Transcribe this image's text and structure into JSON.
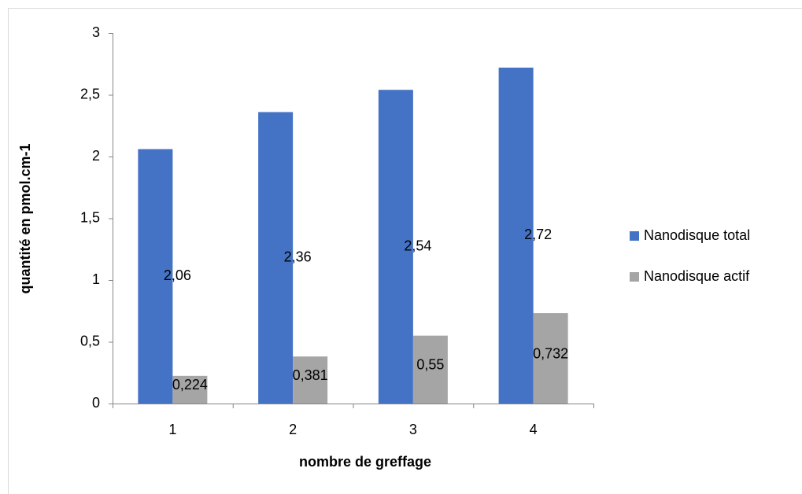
{
  "chart_data": {
    "type": "bar",
    "x_label": "nombre de greffage",
    "y_label": "quantité en pmol.cm-1",
    "categories": [
      "1",
      "2",
      "3",
      "4"
    ],
    "series": [
      {
        "name": "Nanodisque total",
        "color": "#4472c4",
        "values": [
          2.06,
          2.36,
          2.54,
          2.72
        ],
        "value_labels": [
          "2,06",
          "2,36",
          "2,54",
          "2,72"
        ]
      },
      {
        "name": "Nanodisque actif",
        "color": "#a5a5a5",
        "values": [
          0.224,
          0.381,
          0.55,
          0.732
        ],
        "value_labels": [
          "0,224",
          "0,381",
          "0,55",
          "0,732"
        ]
      }
    ],
    "ylim": [
      0,
      3
    ],
    "yticks": [
      0,
      {
        "value": 0.5,
        "label": "0,5"
      },
      1,
      {
        "value": 1.5,
        "label": "1,5"
      },
      2,
      {
        "value": 2.5,
        "label": "2,5"
      },
      3
    ],
    "grid": false,
    "legend": "right"
  }
}
